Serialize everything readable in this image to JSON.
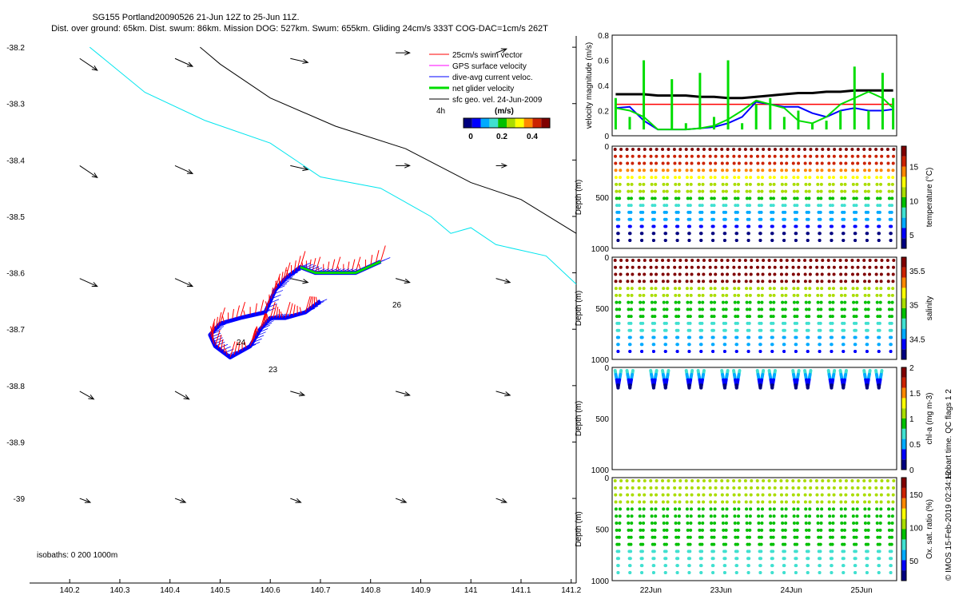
{
  "header": {
    "title": "SG155 Portland20090526 21-Jun 12Z to 25-Jun 11Z.",
    "subtitle": "Dist. over ground: 65km. Dist. swum: 86km. Mission DOG: 527km. Swum: 655km. Gliding 24cm/s 333T COG-DAC=1cm/s 262T"
  },
  "colors": {
    "swim": "#ff0000",
    "gps": "#ff00ff",
    "dac": "#0000ff",
    "net": "#00dd00",
    "geo": "#000000",
    "isobath200": "#00e5ee",
    "isobath1000": "#000000",
    "thermal": [
      "#000080",
      "#0000ff",
      "#00aaff",
      "#40e0d0",
      "#00c000",
      "#aadd00",
      "#ffff00",
      "#ff8800",
      "#cc2200",
      "#800000"
    ]
  },
  "chart_data": [
    {
      "id": "track-map",
      "type": "scatter",
      "xticks": [
        "140.2",
        "140.3",
        "140.4",
        "140.5",
        "140.6",
        "140.7",
        "140.8",
        "140.9",
        "141",
        "141.1",
        "141.2"
      ],
      "yticks": [
        "-38.2",
        "-38.3",
        "-38.4",
        "-38.5",
        "-38.6",
        "-38.7",
        "-38.8",
        "-38.9",
        "-39"
      ],
      "xlim": [
        140.12,
        141.21
      ],
      "ylim": [
        -39.15,
        -38.18
      ],
      "legend": {
        "items": [
          "25cm/s swim vector",
          "GPS surface velocity",
          "dive-avg current veloc.",
          "net glider velocity",
          "sfc geo. vel. 24-Jun-2009"
        ],
        "scale_label": "4h",
        "colorbar_title": "(m/s)",
        "colorbar_ticks": [
          "0",
          "0.2",
          "0.4"
        ]
      },
      "day_labels": [
        "23",
        "24",
        "26"
      ],
      "isobath_label": "isobaths: 0   200   1000m",
      "isobath_200": [
        [
          140.24,
          -38.2
        ],
        [
          140.35,
          -38.28
        ],
        [
          140.47,
          -38.33
        ],
        [
          140.6,
          -38.37
        ],
        [
          140.7,
          -38.43
        ],
        [
          140.82,
          -38.45
        ],
        [
          140.92,
          -38.5
        ],
        [
          140.96,
          -38.53
        ],
        [
          141,
          -38.52
        ],
        [
          141.05,
          -38.55
        ],
        [
          141.1,
          -38.56
        ],
        [
          141.15,
          -38.57
        ],
        [
          141.21,
          -38.62
        ]
      ],
      "isobath_1000": [
        [
          140.46,
          -38.2
        ],
        [
          140.5,
          -38.23
        ],
        [
          140.6,
          -38.29
        ],
        [
          140.73,
          -38.34
        ],
        [
          140.87,
          -38.38
        ],
        [
          141,
          -38.44
        ],
        [
          141.1,
          -38.47
        ],
        [
          141.21,
          -38.53
        ]
      ],
      "geo_vectors": [
        [
          140.22,
          -38.22,
          0.05,
          -0.03
        ],
        [
          140.41,
          -38.22,
          0.05,
          -0.02
        ],
        [
          140.64,
          -38.22,
          0.05,
          -0.01
        ],
        [
          140.85,
          -38.21,
          0.04,
          0.0
        ],
        [
          141.05,
          -38.21,
          0.03,
          0.01
        ],
        [
          140.22,
          -38.41,
          0.05,
          -0.03
        ],
        [
          140.41,
          -38.41,
          0.05,
          -0.02
        ],
        [
          140.64,
          -38.41,
          0.05,
          -0.01
        ],
        [
          140.85,
          -38.41,
          0.04,
          0.0
        ],
        [
          141.05,
          -38.41,
          0.03,
          0.0
        ],
        [
          140.22,
          -38.61,
          0.05,
          -0.02
        ],
        [
          140.41,
          -38.61,
          0.05,
          -0.02
        ],
        [
          140.64,
          -38.61,
          0.05,
          -0.01
        ],
        [
          140.85,
          -38.61,
          0.04,
          -0.01
        ],
        [
          141.05,
          -38.61,
          0.04,
          -0.01
        ],
        [
          140.22,
          -38.81,
          0.04,
          -0.02
        ],
        [
          140.41,
          -38.81,
          0.04,
          -0.02
        ],
        [
          140.64,
          -38.81,
          0.04,
          -0.01
        ],
        [
          140.85,
          -38.81,
          0.04,
          -0.01
        ],
        [
          141.05,
          -38.81,
          0.04,
          -0.01
        ],
        [
          140.22,
          -39.0,
          0.03,
          -0.01
        ],
        [
          140.41,
          -39.0,
          0.03,
          -0.01
        ],
        [
          140.64,
          -39.0,
          0.03,
          -0.01
        ],
        [
          140.85,
          -39.0,
          0.03,
          -0.01
        ],
        [
          141.05,
          -39.0,
          0.03,
          -0.01
        ]
      ],
      "track": [
        [
          140.82,
          -38.58
        ],
        [
          140.77,
          -38.6
        ],
        [
          140.73,
          -38.6
        ],
        [
          140.69,
          -38.6
        ],
        [
          140.66,
          -38.59
        ],
        [
          140.63,
          -38.61
        ],
        [
          140.61,
          -38.63
        ],
        [
          140.59,
          -38.67
        ],
        [
          140.54,
          -38.68
        ],
        [
          140.5,
          -38.69
        ],
        [
          140.48,
          -38.71
        ],
        [
          140.49,
          -38.73
        ],
        [
          140.52,
          -38.75
        ],
        [
          140.56,
          -38.73
        ],
        [
          140.58,
          -38.7
        ],
        [
          140.6,
          -38.68
        ],
        [
          140.63,
          -38.68
        ],
        [
          140.67,
          -38.67
        ],
        [
          140.7,
          -38.65
        ]
      ]
    },
    {
      "id": "velocity-panel",
      "type": "line",
      "ylabel": "velocity magnitude (m/s)",
      "ylim": [
        0,
        0.8
      ],
      "yticks": [
        "0",
        "0.2",
        "0.4",
        "0.6",
        "0.8"
      ],
      "x": [
        21.5,
        21.7,
        21.9,
        22.1,
        22.3,
        22.5,
        22.7,
        22.9,
        23.1,
        23.3,
        23.5,
        23.7,
        23.9,
        24.1,
        24.3,
        24.5,
        24.7,
        24.9,
        25.1,
        25.3,
        25.45
      ],
      "series": [
        {
          "name": "swim",
          "values": [
            0.25,
            0.25,
            0.25,
            0.25,
            0.25,
            0.25,
            0.25,
            0.25,
            0.25,
            0.25,
            0.25,
            0.25,
            0.25,
            0.25,
            0.25,
            0.25,
            0.25,
            0.25,
            0.25,
            0.25,
            0.25
          ]
        },
        {
          "name": "geo",
          "values": [
            0.33,
            0.33,
            0.33,
            0.32,
            0.32,
            0.32,
            0.31,
            0.31,
            0.3,
            0.3,
            0.31,
            0.32,
            0.33,
            0.34,
            0.34,
            0.35,
            0.35,
            0.36,
            0.36,
            0.36,
            0.36
          ]
        },
        {
          "name": "dac",
          "values": [
            0.22,
            0.23,
            0.12,
            0.05,
            0.05,
            0.05,
            0.06,
            0.07,
            0.1,
            0.15,
            0.27,
            0.25,
            0.23,
            0.23,
            0.18,
            0.15,
            0.2,
            0.22,
            0.2,
            0.2,
            0.21
          ]
        },
        {
          "name": "net",
          "values": [
            0.22,
            0.2,
            0.15,
            0.05,
            0.05,
            0.05,
            0.06,
            0.08,
            0.13,
            0.2,
            0.28,
            0.25,
            0.22,
            0.12,
            0.1,
            0.15,
            0.25,
            0.3,
            0.35,
            0.3,
            0.22
          ]
        },
        {
          "name": "gps",
          "values": [
            0.3,
            0.15,
            0.6,
            0.05,
            0.45,
            0.1,
            0.5,
            0.15,
            0.6,
            0.1,
            0.25,
            0.3,
            0.15,
            0.2,
            0.1,
            0.12,
            0.2,
            0.55,
            0.2,
            0.5,
            0.3
          ]
        }
      ]
    },
    {
      "id": "temperature-panel",
      "type": "heatmap",
      "ylabel": "Depth (m)",
      "colorbar_label": "temperature (°C)",
      "colorbar_ticks": [
        "5",
        "10",
        "15"
      ],
      "clim": [
        3,
        18
      ],
      "depth_ticks": [
        "0",
        "500",
        "1000"
      ],
      "dives": 24,
      "max_depth": 1000
    },
    {
      "id": "salinity-panel",
      "type": "heatmap",
      "ylabel": "Depth (m)",
      "colorbar_label": "salinity",
      "colorbar_ticks": [
        "34.5",
        "35",
        "35.5"
      ],
      "clim": [
        34.2,
        35.7
      ],
      "depth_ticks": [
        "0",
        "500",
        "1000"
      ],
      "dives": 24,
      "max_depth": 1000
    },
    {
      "id": "chla-panel",
      "type": "heatmap",
      "ylabel": "Depth (m)",
      "colorbar_label": "chl-a (mg m-3)",
      "colorbar_ticks": [
        "0",
        "0.5",
        "1",
        "1.5",
        "2"
      ],
      "clim": [
        0,
        2
      ],
      "depth_ticks": [
        "0",
        "500",
        "1000"
      ],
      "dives": 24,
      "max_depth": 1000
    },
    {
      "id": "oxygen-panel",
      "type": "heatmap",
      "ylabel": "Depth (m)",
      "colorbar_label": "Ox. sat. ratio (%)",
      "colorbar_ticks": [
        "50",
        "100",
        "150"
      ],
      "clim": [
        20,
        175
      ],
      "depth_ticks": [
        "0",
        "500",
        "1000"
      ],
      "dives": 24,
      "max_depth": 1000,
      "xticks": [
        "22Jun",
        "23Jun",
        "24Jun",
        "25Jun"
      ]
    }
  ],
  "footer": {
    "qc_note": "Hobart time. QC flags 1  2",
    "credit": "© IMOS 15-Feb-2019 02:34:12"
  }
}
